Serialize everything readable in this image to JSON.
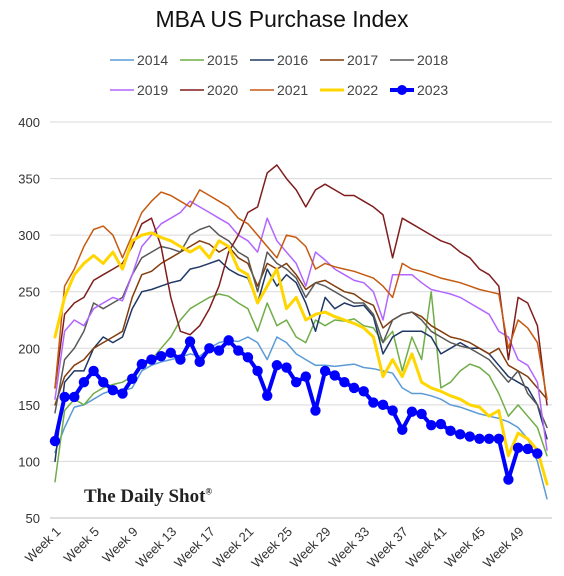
{
  "chart_data": {
    "type": "line",
    "title": "MBA US Purchase Index",
    "xlabel": "",
    "ylabel": "",
    "ylim": [
      50,
      400
    ],
    "yticks": [
      50,
      100,
      150,
      200,
      250,
      300,
      350,
      400
    ],
    "xtick_labels": [
      "Week 1",
      "Week 5",
      "Week 9",
      "Week 13",
      "Week 17",
      "Week 21",
      "Week 25",
      "Week 29",
      "Week 33",
      "Week 37",
      "Week 41",
      "Week 45",
      "Week 49"
    ],
    "grid": true,
    "legend_position": "top",
    "watermark": "The Daily Shot",
    "series": [
      {
        "name": "2014",
        "color": "#5b9bd5",
        "width": 1.5,
        "marker": false,
        "values": [
          108,
          130,
          148,
          150,
          155,
          160,
          163,
          162,
          165,
          180,
          185,
          188,
          190,
          192,
          195,
          193,
          200,
          205,
          207,
          206,
          210,
          205,
          190,
          210,
          205,
          195,
          190,
          185,
          185,
          184,
          185,
          186,
          183,
          182,
          180,
          178,
          165,
          160,
          160,
          158,
          155,
          150,
          148,
          145,
          142,
          140,
          138,
          135,
          130,
          120,
          100,
          67
        ]
      },
      {
        "name": "2015",
        "color": "#70ad47",
        "width": 1.5,
        "marker": false,
        "values": [
          82,
          145,
          155,
          150,
          160,
          165,
          168,
          170,
          175,
          185,
          190,
          200,
          210,
          225,
          235,
          240,
          245,
          248,
          246,
          240,
          235,
          215,
          240,
          220,
          225,
          210,
          205,
          225,
          220,
          225,
          224,
          226,
          220,
          218,
          205,
          215,
          180,
          210,
          190,
          250,
          165,
          170,
          180,
          186,
          183,
          176,
          160,
          140,
          150,
          140,
          130,
          105
        ]
      },
      {
        "name": "2016",
        "color": "#1f3864",
        "width": 1.5,
        "marker": false,
        "values": [
          100,
          170,
          180,
          180,
          200,
          210,
          205,
          210,
          235,
          250,
          252,
          255,
          258,
          260,
          270,
          272,
          275,
          278,
          270,
          265,
          262,
          240,
          270,
          255,
          265,
          258,
          240,
          215,
          245,
          235,
          240,
          237,
          238,
          228,
          195,
          210,
          215,
          215,
          215,
          210,
          195,
          200,
          205,
          200,
          200,
          195,
          185,
          175,
          170,
          165,
          150,
          120
        ]
      },
      {
        "name": "2017",
        "color": "#843c0c",
        "width": 1.5,
        "marker": false,
        "values": [
          150,
          175,
          185,
          190,
          200,
          205,
          210,
          215,
          245,
          265,
          268,
          275,
          280,
          285,
          290,
          295,
          292,
          285,
          290,
          280,
          275,
          255,
          275,
          270,
          275,
          265,
          252,
          258,
          260,
          255,
          250,
          248,
          242,
          238,
          218,
          225,
          230,
          232,
          228,
          220,
          215,
          210,
          208,
          205,
          200,
          195,
          200,
          185,
          180,
          175,
          165,
          155
        ]
      },
      {
        "name": "2018",
        "color": "#595959",
        "width": 1.5,
        "marker": false,
        "values": [
          143,
          190,
          200,
          215,
          240,
          235,
          240,
          245,
          265,
          280,
          285,
          290,
          288,
          285,
          300,
          305,
          308,
          300,
          295,
          285,
          280,
          250,
          285,
          275,
          270,
          262,
          245,
          258,
          255,
          250,
          245,
          240,
          240,
          230,
          205,
          225,
          230,
          232,
          225,
          215,
          210,
          205,
          202,
          200,
          195,
          190,
          180,
          170,
          180,
          160,
          150,
          130
        ]
      },
      {
        "name": "2019",
        "color": "#b266ff",
        "width": 1.5,
        "marker": false,
        "values": [
          155,
          215,
          225,
          220,
          235,
          240,
          245,
          242,
          265,
          290,
          300,
          310,
          315,
          320,
          330,
          325,
          320,
          315,
          310,
          300,
          295,
          285,
          315,
          295,
          285,
          275,
          255,
          285,
          278,
          270,
          265,
          260,
          258,
          250,
          225,
          265,
          265,
          265,
          258,
          252,
          250,
          248,
          245,
          240,
          235,
          230,
          215,
          210,
          190,
          185,
          170,
          110
        ]
      },
      {
        "name": "2020",
        "color": "#7f1d1d",
        "width": 1.5,
        "marker": false,
        "values": [
          165,
          230,
          240,
          245,
          260,
          265,
          270,
          275,
          290,
          310,
          315,
          290,
          245,
          215,
          212,
          220,
          235,
          255,
          285,
          300,
          320,
          325,
          355,
          362,
          350,
          340,
          325,
          340,
          345,
          340,
          335,
          335,
          330,
          325,
          318,
          280,
          315,
          310,
          305,
          300,
          295,
          292,
          285,
          280,
          270,
          265,
          255,
          190,
          245,
          240,
          220,
          150
        ]
      },
      {
        "name": "2021",
        "color": "#c55a11",
        "width": 1.5,
        "marker": false,
        "values": [
          165,
          255,
          270,
          290,
          305,
          308,
          300,
          280,
          300,
          320,
          330,
          338,
          335,
          330,
          325,
          340,
          335,
          330,
          325,
          315,
          310,
          300,
          290,
          280,
          300,
          298,
          290,
          270,
          275,
          272,
          270,
          268,
          265,
          262,
          255,
          245,
          275,
          270,
          268,
          265,
          262,
          260,
          258,
          255,
          252,
          250,
          248,
          200,
          225,
          218,
          205,
          155
        ]
      },
      {
        "name": "2022",
        "color": "#ffd600",
        "width": 3,
        "marker": false,
        "values": [
          210,
          245,
          265,
          275,
          282,
          275,
          285,
          270,
          295,
          300,
          302,
          298,
          295,
          290,
          285,
          290,
          280,
          295,
          290,
          270,
          265,
          240,
          255,
          270,
          235,
          245,
          225,
          230,
          232,
          228,
          225,
          222,
          218,
          210,
          175,
          190,
          175,
          195,
          170,
          165,
          162,
          158,
          155,
          150,
          148,
          140,
          145,
          105,
          125,
          120,
          110,
          80
        ]
      },
      {
        "name": "2023",
        "color": "#0000ff",
        "width": 4,
        "marker": true,
        "values": [
          118,
          157,
          157,
          170,
          180,
          170,
          163,
          160,
          173,
          186,
          190,
          193,
          196,
          190,
          206,
          188,
          200,
          198,
          207,
          198,
          192,
          180,
          158,
          185,
          183,
          170,
          175,
          145,
          180,
          176,
          170,
          165,
          162,
          152,
          150,
          145,
          128,
          144,
          142,
          132,
          133,
          127,
          124,
          122,
          120,
          120,
          120,
          84,
          112,
          111,
          107
        ]
      }
    ]
  }
}
